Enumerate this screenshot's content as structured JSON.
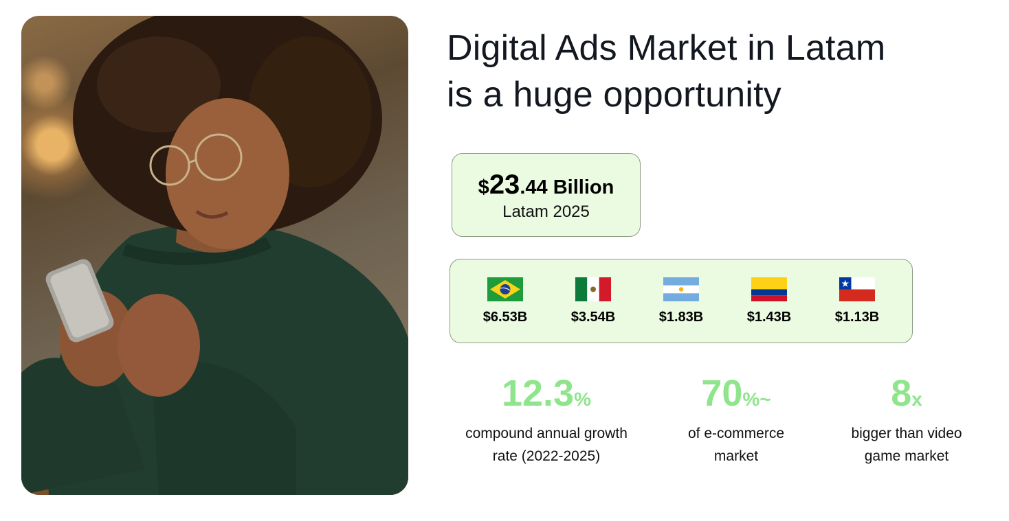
{
  "heading": {
    "line1": "Digital Ads Market in Latam",
    "line2": "is a huge opportunity"
  },
  "total": {
    "currency": "$",
    "whole": "23",
    "decimal": ".44",
    "unit": "Billion",
    "subtitle": "Latam 2025"
  },
  "countries": [
    {
      "flag": "brazil-flag",
      "value": "$6.53B"
    },
    {
      "flag": "mexico-flag",
      "value": "$3.54B"
    },
    {
      "flag": "argentina-flag",
      "value": "$1.83B"
    },
    {
      "flag": "colombia-flag",
      "value": "$1.43B"
    },
    {
      "flag": "chile-flag",
      "value": "$1.13B"
    }
  ],
  "stats": [
    {
      "number": "12.3",
      "suffix": "%",
      "label": "compound annual growth\nrate (2022-2025)"
    },
    {
      "number": "70",
      "suffix": "%~",
      "label": "of e-commerce\nmarket"
    },
    {
      "number": "8",
      "suffix": "x",
      "label": "bigger than video\ngame market"
    }
  ],
  "colors": {
    "accent_green": "#8ee58c",
    "card_background": "#ebfbe1",
    "heading_text": "#131820"
  }
}
